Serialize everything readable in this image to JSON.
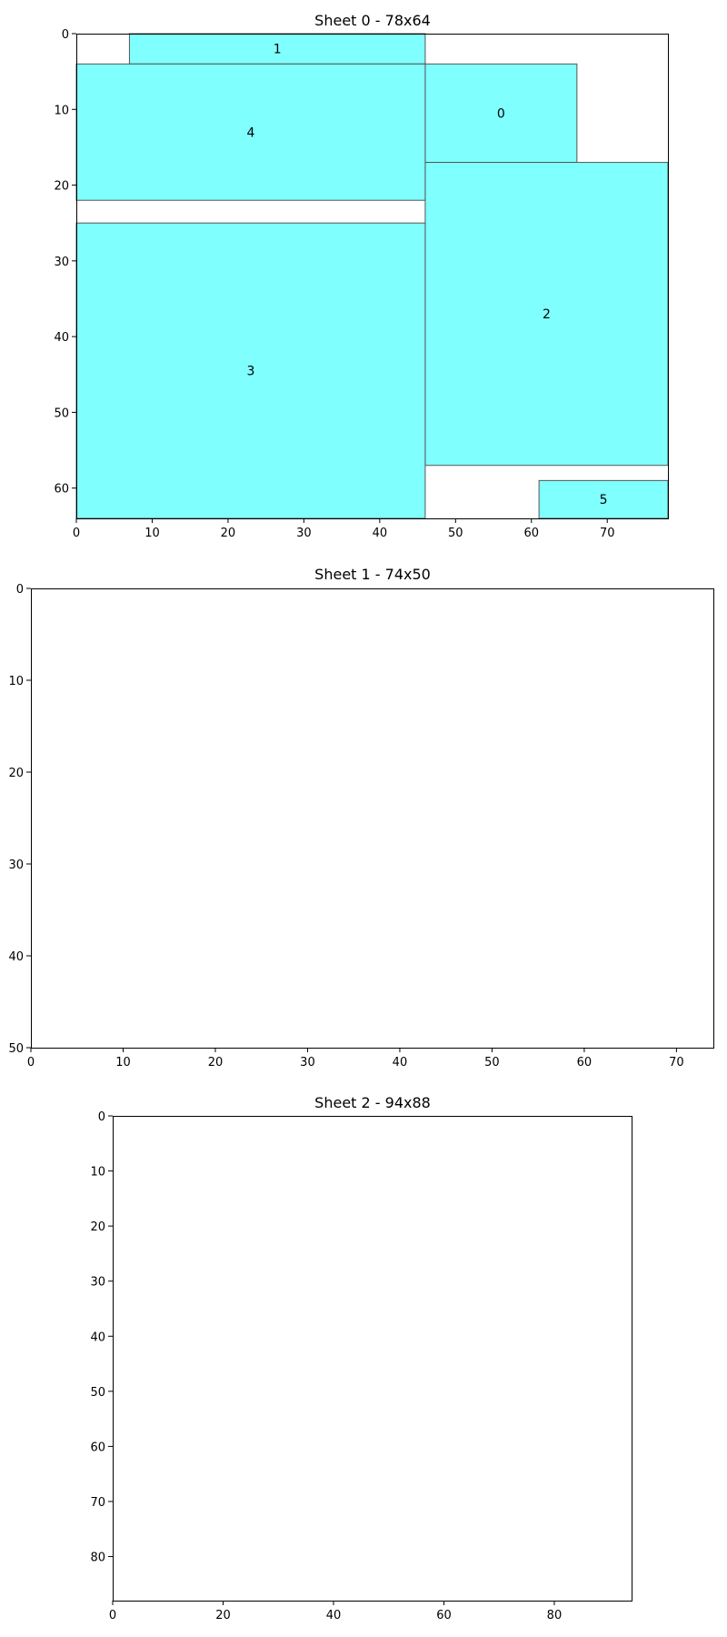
{
  "chart_data": [
    {
      "type": "rectangle-packing",
      "title": "Sheet 0 - 78x64",
      "xlim": [
        0,
        78
      ],
      "ylim": [
        0,
        64
      ],
      "y_inverted": true,
      "xticks": [
        "0",
        "10",
        "20",
        "30",
        "40",
        "50",
        "60",
        "70"
      ],
      "yticks": [
        "0",
        "10",
        "20",
        "30",
        "40",
        "50",
        "60"
      ],
      "fill_color": "#80ffff",
      "edge_color": "#555555",
      "rectangles": [
        {
          "label": "0",
          "x": 46,
          "y": 4,
          "w": 20,
          "h": 13
        },
        {
          "label": "1",
          "x": 7,
          "y": 0,
          "w": 39,
          "h": 4
        },
        {
          "label": "2",
          "x": 46,
          "y": 17,
          "w": 32,
          "h": 40
        },
        {
          "label": "3",
          "x": 0,
          "y": 25,
          "w": 46,
          "h": 39
        },
        {
          "label": "4",
          "x": 0,
          "y": 4,
          "w": 46,
          "h": 18
        },
        {
          "label": "5",
          "x": 61,
          "y": 59,
          "w": 17,
          "h": 5
        }
      ]
    },
    {
      "type": "rectangle-packing",
      "title": "Sheet 1 - 74x50",
      "xlim": [
        0,
        74
      ],
      "ylim": [
        0,
        50
      ],
      "y_inverted": true,
      "xticks": [
        "0",
        "10",
        "20",
        "30",
        "40",
        "50",
        "60",
        "70"
      ],
      "yticks": [
        "0",
        "10",
        "20",
        "30",
        "40",
        "50"
      ],
      "fill_color": "#80ffff",
      "edge_color": "#555555",
      "rectangles": []
    },
    {
      "type": "rectangle-packing",
      "title": "Sheet 2 - 94x88",
      "xlim": [
        0,
        94
      ],
      "ylim": [
        0,
        88
      ],
      "y_inverted": true,
      "xticks": [
        "0",
        "20",
        "40",
        "60",
        "80"
      ],
      "yticks": [
        "0",
        "10",
        "20",
        "30",
        "40",
        "50",
        "60",
        "70",
        "80"
      ],
      "fill_color": "#80ffff",
      "edge_color": "#555555",
      "rectangles": []
    }
  ]
}
